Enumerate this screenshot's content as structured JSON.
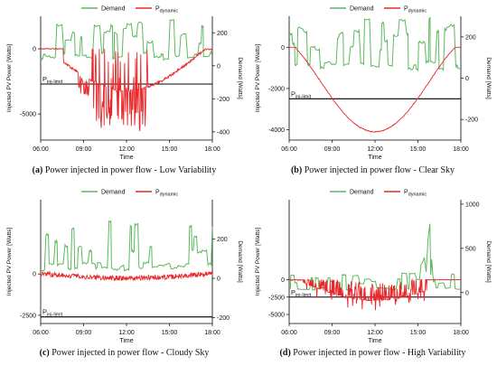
{
  "colors": {
    "demand": "#5cb85c",
    "pdynamic": "#e8282b",
    "limit": "#000000",
    "axis": "#000000"
  },
  "chart_data": [
    {
      "type": "line",
      "caption_letter": "(a)",
      "caption_text": "Power injected in power flow - Low Variability",
      "xlabel": "Time",
      "ylabel_left": "Injected PV Power [Watts]",
      "ylabel_right": "Demand [Watts]",
      "x_ticks": [
        "06:00",
        "09:00",
        "12:00",
        "15:00",
        "18:00"
      ],
      "x_range": [
        "06:00",
        "18:00"
      ],
      "y_left_ticks": [
        0,
        -5000
      ],
      "y_left_range": [
        -7000,
        2500
      ],
      "y_right_ticks": [
        200,
        0,
        -200,
        -400
      ],
      "y_right_range": [
        -450,
        300
      ],
      "limit_label_main": "P",
      "limit_label_sub": "inj-limit",
      "limit_value_left": -2700,
      "legend": [
        {
          "series": "demand",
          "main": "Demand",
          "sub": ""
        },
        {
          "series": "pdynamic",
          "main": "P",
          "sub": "dynamic"
        }
      ],
      "pdynamic_profile": "low",
      "demand_seed": 11
    },
    {
      "type": "line",
      "caption_letter": "(b)",
      "caption_text": "Power injected in power flow - Clear Sky",
      "xlabel": "Time",
      "ylabel_left": "Injected PV Power [Watts]",
      "ylabel_right": "Demand [Watts]",
      "x_ticks": [
        "06:00",
        "09:00",
        "12:00",
        "15:00",
        "18:00"
      ],
      "x_range": [
        "06:00",
        "18:00"
      ],
      "y_left_ticks": [
        0,
        -2000,
        -4000
      ],
      "y_left_range": [
        -4500,
        1500
      ],
      "y_right_ticks": [
        200,
        0,
        -200
      ],
      "y_right_range": [
        -300,
        300
      ],
      "limit_label_main": "P",
      "limit_label_sub": "inj-limit",
      "limit_value_left": -2500,
      "legend": [
        {
          "series": "demand",
          "main": "Demand",
          "sub": ""
        },
        {
          "series": "pdynamic",
          "main": "P",
          "sub": "dynamic"
        }
      ],
      "pdynamic_profile": "clear",
      "demand_seed": 23
    },
    {
      "type": "line",
      "caption_letter": "(c)",
      "caption_text": "Power injected in power flow - Cloudy Sky",
      "xlabel": "Time",
      "ylabel_left": "Injected PV Power [Watts]",
      "ylabel_right": "Demand [Watts]",
      "x_ticks": [
        "06:00",
        "09:00",
        "12:00",
        "15:00",
        "18:00"
      ],
      "x_range": [
        "06:00",
        "18:00"
      ],
      "y_left_ticks": [
        0,
        -2500
      ],
      "y_left_range": [
        -3000,
        4500
      ],
      "y_right_ticks": [
        200,
        0,
        -200
      ],
      "y_right_range": [
        -230,
        400
      ],
      "limit_label_main": "P",
      "limit_label_sub": "inj-limit",
      "limit_value_left": -2600,
      "legend": [
        {
          "series": "demand",
          "main": "Demand",
          "sub": ""
        },
        {
          "series": "pdynamic",
          "main": "P",
          "sub": "dynamic"
        }
      ],
      "pdynamic_profile": "cloudy",
      "demand_seed": 37
    },
    {
      "type": "line",
      "caption_letter": "(d)",
      "caption_text": "Power injected in power flow - High Variability",
      "xlabel": "Time",
      "ylabel_left": "Injected PV Power [Watts]",
      "ylabel_right": "Demand [Watts]",
      "x_ticks": [
        "06:00",
        "09:00",
        "12:00",
        "15:00",
        "18:00"
      ],
      "x_range": [
        "06:00",
        "18:00"
      ],
      "y_left_ticks": [
        0,
        -2500,
        -5000
      ],
      "y_left_range": [
        -6300,
        11500
      ],
      "y_right_ticks": [
        1000,
        500,
        0
      ],
      "y_right_range": [
        -350,
        1050
      ],
      "limit_label_main": "P",
      "limit_label_sub": "inj-limit",
      "limit_value_left": -2500,
      "legend": [
        {
          "series": "demand",
          "main": "Demand",
          "sub": ""
        },
        {
          "series": "pdynamic",
          "main": "P",
          "sub": "dynamic"
        }
      ],
      "pdynamic_profile": "high",
      "demand_seed": 53
    }
  ]
}
